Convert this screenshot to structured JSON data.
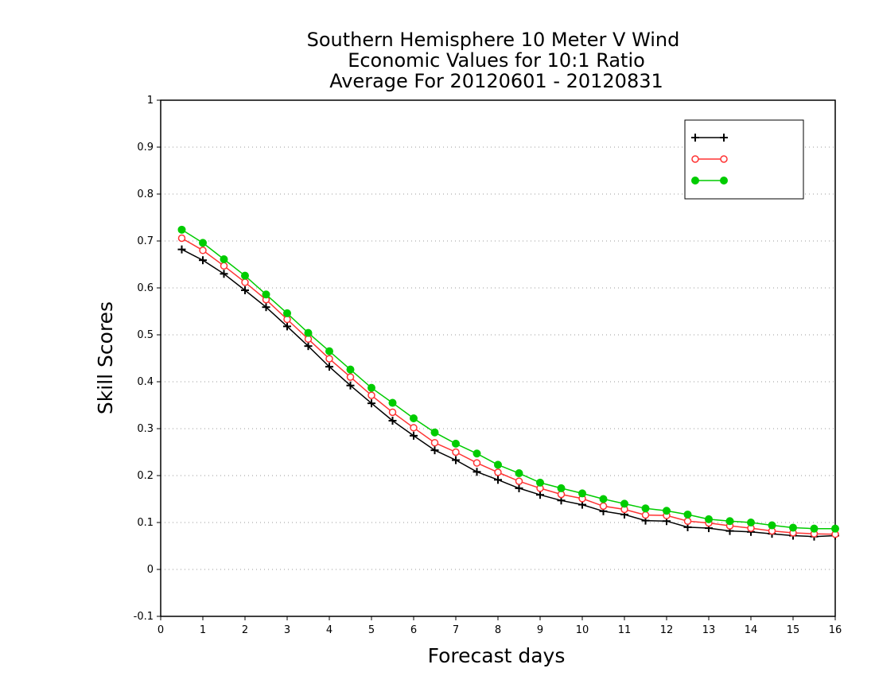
{
  "chart_data": {
    "type": "line",
    "title": [
      "Southern Hemisphere 10 Meter V Wind",
      "Economic Values for 10:1 Ratio",
      "Average For 20120601 - 20120831"
    ],
    "xlabel": "Forecast days",
    "ylabel": "Skill Scores",
    "xlim": [
      0,
      16
    ],
    "ylim": [
      -0.1,
      1
    ],
    "x_ticks": [
      "0",
      "1",
      "2",
      "3",
      "4",
      "5",
      "6",
      "7",
      "8",
      "9",
      "10",
      "11",
      "12",
      "13",
      "14",
      "15",
      "16"
    ],
    "y_ticks": [
      "-0.1",
      "0",
      "0.1",
      "0.2",
      "0.3",
      "0.4",
      "0.5",
      "0.6",
      "0.7",
      "0.8",
      "0.9",
      "1"
    ],
    "grid": true,
    "legend_position": "top-right",
    "x": [
      0.5,
      1,
      1.5,
      2,
      2.5,
      3,
      3.5,
      4,
      4.5,
      5,
      5.5,
      6,
      6.5,
      7,
      7.5,
      8,
      8.5,
      9,
      9.5,
      10,
      10.5,
      11,
      11.5,
      12,
      12.5,
      13,
      13.5,
      14,
      14.5,
      15,
      15.5,
      16
    ],
    "series": [
      {
        "name": "",
        "color": "#000000",
        "marker": "plus",
        "values": [
          0.682,
          0.659,
          0.63,
          0.595,
          0.559,
          0.518,
          0.476,
          0.432,
          0.392,
          0.354,
          0.317,
          0.285,
          0.254,
          0.233,
          0.208,
          0.191,
          0.173,
          0.159,
          0.147,
          0.138,
          0.124,
          0.117,
          0.104,
          0.103,
          0.09,
          0.088,
          0.082,
          0.08,
          0.076,
          0.072,
          0.07,
          0.072
        ]
      },
      {
        "name": "",
        "color": "#ff3333",
        "marker": "open-circle",
        "values": [
          0.706,
          0.68,
          0.647,
          0.612,
          0.575,
          0.533,
          0.491,
          0.449,
          0.41,
          0.371,
          0.335,
          0.302,
          0.27,
          0.25,
          0.227,
          0.207,
          0.188,
          0.173,
          0.16,
          0.151,
          0.135,
          0.128,
          0.116,
          0.115,
          0.103,
          0.099,
          0.093,
          0.088,
          0.082,
          0.078,
          0.076,
          0.075
        ]
      },
      {
        "name": "",
        "color": "#00cc00",
        "marker": "filled-circle",
        "values": [
          0.724,
          0.696,
          0.661,
          0.626,
          0.586,
          0.546,
          0.504,
          0.465,
          0.426,
          0.387,
          0.355,
          0.322,
          0.292,
          0.268,
          0.247,
          0.223,
          0.205,
          0.185,
          0.173,
          0.162,
          0.15,
          0.14,
          0.13,
          0.125,
          0.117,
          0.107,
          0.103,
          0.1,
          0.094,
          0.089,
          0.087,
          0.087
        ]
      }
    ]
  }
}
